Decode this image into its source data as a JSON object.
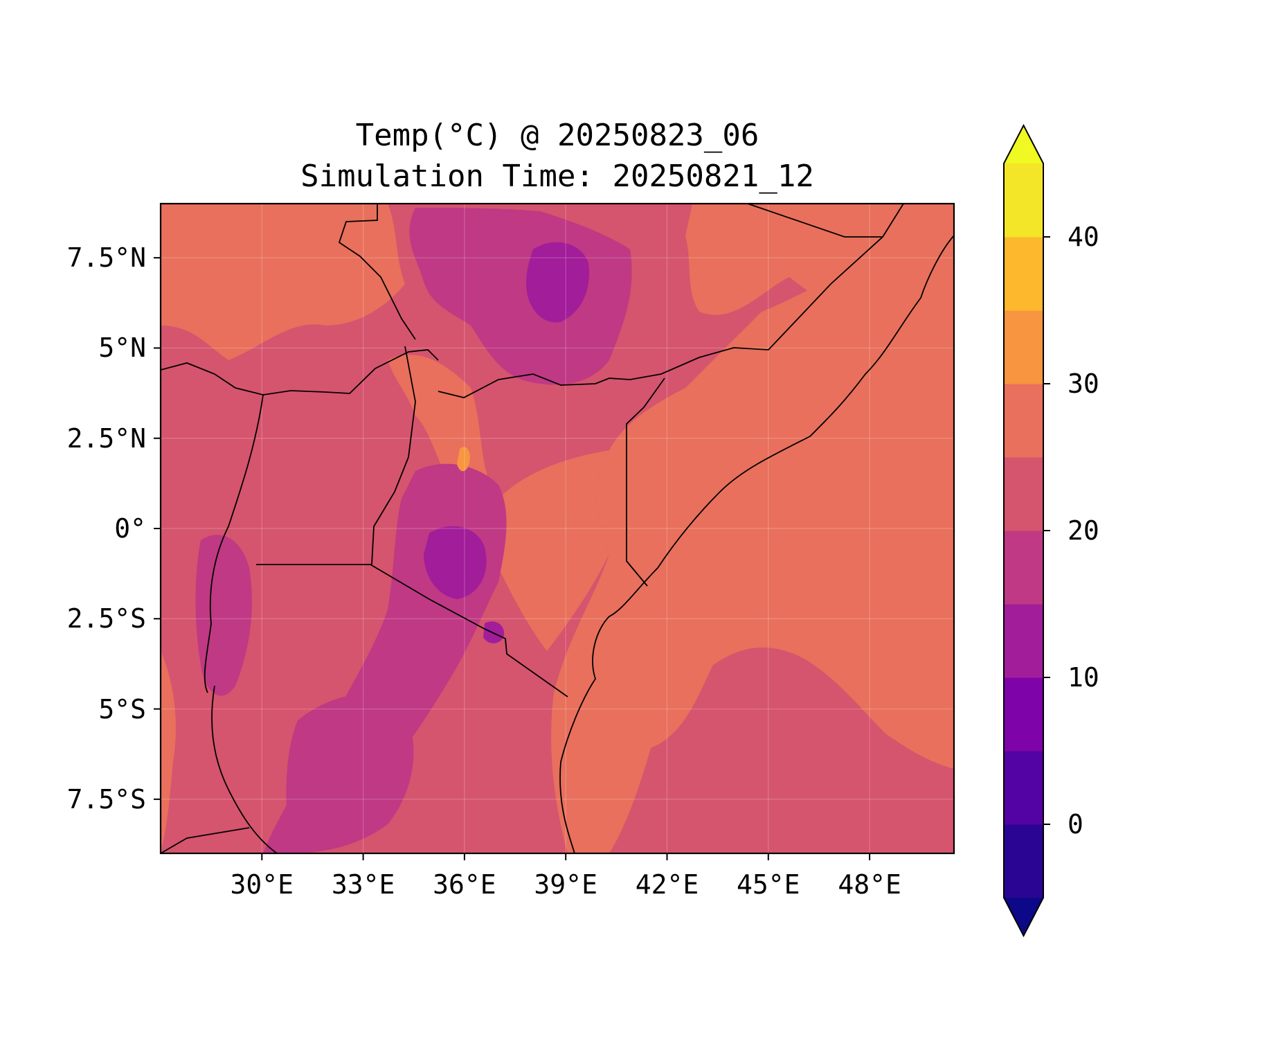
{
  "title": {
    "line1": "Temp(°C) @ 20250823_06",
    "line2": "Simulation Time: 20250821_12"
  },
  "map": {
    "lon_range": [
      27,
      50.5
    ],
    "lat_range": [
      -9,
      9
    ],
    "lon_ticks": [
      {
        "value": 30,
        "label": "30°E"
      },
      {
        "value": 33,
        "label": "33°E"
      },
      {
        "value": 36,
        "label": "36°E"
      },
      {
        "value": 39,
        "label": "39°E"
      },
      {
        "value": 42,
        "label": "42°E"
      },
      {
        "value": 45,
        "label": "45°E"
      },
      {
        "value": 48,
        "label": "48°E"
      }
    ],
    "lat_ticks": [
      {
        "value": 7.5,
        "label": "7.5°N"
      },
      {
        "value": 5,
        "label": "5°N"
      },
      {
        "value": 2.5,
        "label": "2.5°N"
      },
      {
        "value": 0,
        "label": "0°"
      },
      {
        "value": -2.5,
        "label": "2.5°S"
      },
      {
        "value": -5,
        "label": "5°S"
      },
      {
        "value": -7.5,
        "label": "7.5°S"
      }
    ],
    "gridlines": true,
    "field": "temperature",
    "units": "°C"
  },
  "colorbar": {
    "levels": [
      -5,
      0,
      5,
      10,
      15,
      20,
      25,
      30,
      35,
      40,
      45
    ],
    "colors": [
      "#2a0593",
      "#5302a3",
      "#7e03a8",
      "#a21d9a",
      "#bf3984",
      "#d5546e",
      "#e8705c",
      "#f89540",
      "#fdb82e",
      "#f3e528"
    ],
    "under_color": "#0d0887",
    "over_color": "#f0f921",
    "extend": "both",
    "ticks": [
      {
        "value": 0,
        "label": "0"
      },
      {
        "value": 10,
        "label": "10"
      },
      {
        "value": 20,
        "label": "20"
      },
      {
        "value": 30,
        "label": "30"
      },
      {
        "value": 40,
        "label": "40"
      }
    ]
  }
}
